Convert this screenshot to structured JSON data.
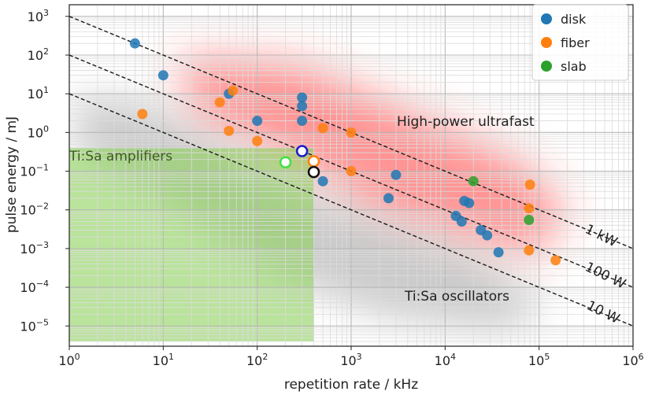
{
  "chart_data": {
    "type": "scatter",
    "xlabel": "repetition rate / kHz",
    "ylabel": "pulse energy / mJ",
    "xscale": "log",
    "yscale": "log",
    "xlim": [
      1,
      1000000
    ],
    "ylim": [
      3e-06,
      2000
    ],
    "grid": "major and minor",
    "legend_position": "top-right",
    "x_ticks": [
      {
        "value": 1,
        "base": "10",
        "exp": "0"
      },
      {
        "value": 10,
        "base": "10",
        "exp": "1"
      },
      {
        "value": 100,
        "base": "10",
        "exp": "2"
      },
      {
        "value": 1000,
        "base": "10",
        "exp": "3"
      },
      {
        "value": 10000,
        "base": "10",
        "exp": "4"
      },
      {
        "value": 100000,
        "base": "10",
        "exp": "5"
      },
      {
        "value": 1000000,
        "base": "10",
        "exp": "6"
      }
    ],
    "y_ticks": [
      {
        "value": 1e-05,
        "base": "10",
        "exp": "−5"
      },
      {
        "value": 0.0001,
        "base": "10",
        "exp": "−4"
      },
      {
        "value": 0.001,
        "base": "10",
        "exp": "−3"
      },
      {
        "value": 0.01,
        "base": "10",
        "exp": "−2"
      },
      {
        "value": 0.1,
        "base": "10",
        "exp": "−1"
      },
      {
        "value": 1,
        "base": "10",
        "exp": "0"
      },
      {
        "value": 10,
        "base": "10",
        "exp": "1"
      },
      {
        "value": 100,
        "base": "10",
        "exp": "2"
      },
      {
        "value": 1000,
        "base": "10",
        "exp": "3"
      }
    ],
    "series": [
      {
        "name": "disk",
        "color": "#1f77b4",
        "points": [
          [
            5,
            200
          ],
          [
            10,
            30
          ],
          [
            50,
            10
          ],
          [
            100,
            2
          ],
          [
            300,
            8
          ],
          [
            300,
            4.8
          ],
          [
            300,
            2
          ],
          [
            500,
            0.055
          ],
          [
            3000,
            0.08
          ],
          [
            2500,
            0.02
          ],
          [
            16000,
            0.017
          ],
          [
            13000,
            0.007
          ],
          [
            15000,
            0.005
          ],
          [
            24000,
            0.003
          ],
          [
            28000,
            0.0022
          ],
          [
            37000,
            0.0008
          ],
          [
            18000,
            0.015
          ]
        ]
      },
      {
        "name": "fiber",
        "color": "#ff7f0e",
        "points": [
          [
            6,
            3
          ],
          [
            40,
            6
          ],
          [
            55,
            12
          ],
          [
            50,
            1.1
          ],
          [
            100,
            0.6
          ],
          [
            500,
            1.3
          ],
          [
            1000,
            1.0
          ],
          [
            1000,
            0.1
          ],
          [
            80000,
            0.045
          ],
          [
            78000,
            0.011
          ],
          [
            78000,
            0.0009
          ],
          [
            150000,
            0.0005
          ]
        ]
      },
      {
        "name": "slab",
        "color": "#2ca02c",
        "points": [
          [
            20000,
            0.055
          ],
          [
            78000,
            0.0055
          ]
        ]
      }
    ],
    "highlighted_points": [
      {
        "x": 300,
        "y": 0.33,
        "fill": "#ffffff",
        "stroke": "#1a1ad0"
      },
      {
        "x": 200,
        "y": 0.17,
        "fill": "#ffffff",
        "stroke": "#44e044"
      },
      {
        "x": 400,
        "y": 0.18,
        "fill": "#ffffff",
        "stroke": "#ff7f0e"
      },
      {
        "x": 400,
        "y": 0.095,
        "fill": "#ffffff",
        "stroke": "#111111"
      }
    ],
    "power_lines": [
      {
        "label": "1 kW",
        "at_x1": 1000
      },
      {
        "label": "100 W",
        "at_x1": 100
      },
      {
        "label": "10 W",
        "at_x1": 10
      }
    ],
    "regions": [
      {
        "label": "Ti:Sa amplifiers",
        "color": "#8cd05a"
      },
      {
        "label": "High-power ultrafast",
        "color": "#ff3c3c"
      },
      {
        "label": "Ti:Sa oscillators",
        "color": "#8c8c8c"
      }
    ]
  }
}
